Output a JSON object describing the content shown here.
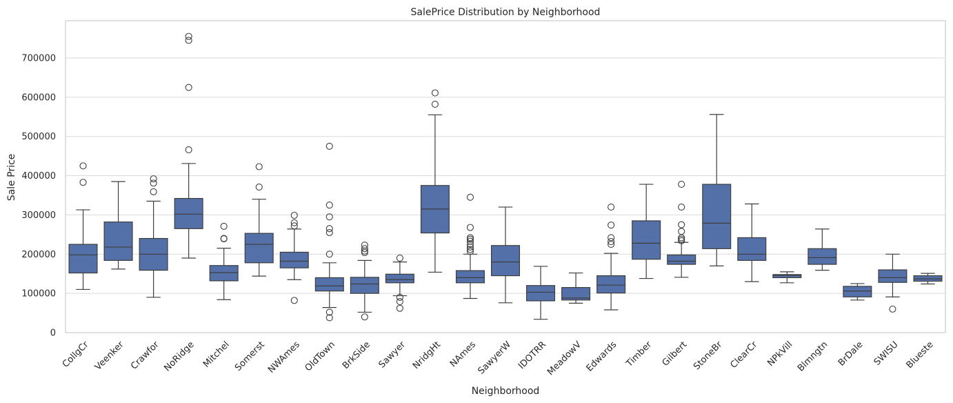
{
  "chart_data": {
    "type": "box",
    "title": "SalePrice Distribution by Neighborhood",
    "xlabel": "Neighborhood",
    "ylabel": "Sale Price",
    "ylim": [
      0,
      795000
    ],
    "yticks": [
      0,
      100000,
      200000,
      300000,
      400000,
      500000,
      600000,
      700000
    ],
    "grid": "horizontal",
    "colors": {
      "box": "#5470a8",
      "line": "#3d3d3d",
      "grid": "#d9d9d9",
      "frame": "#cccccc"
    },
    "boxes": [
      {
        "category": "CollgCr",
        "whisker_low": 110000,
        "q1": 152000,
        "median": 198000,
        "q3": 225000,
        "whisker_high": 313000,
        "outliers": [
          383000,
          425000
        ]
      },
      {
        "category": "Veenker",
        "whisker_low": 162000,
        "q1": 184000,
        "median": 218000,
        "q3": 282000,
        "whisker_high": 385000,
        "outliers": []
      },
      {
        "category": "Crawfor",
        "whisker_low": 90000,
        "q1": 159000,
        "median": 200000,
        "q3": 240000,
        "whisker_high": 335000,
        "outliers": [
          359000,
          381000,
          392000
        ]
      },
      {
        "category": "NoRidge",
        "whisker_low": 190000,
        "q1": 265000,
        "median": 302000,
        "q3": 342000,
        "whisker_high": 431000,
        "outliers": [
          466000,
          625000,
          745000,
          755000
        ]
      },
      {
        "category": "Mitchel",
        "whisker_low": 84000,
        "q1": 132000,
        "median": 153000,
        "q3": 171000,
        "whisker_high": 215000,
        "outliers": [
          239000,
          240000,
          271000
        ]
      },
      {
        "category": "Somerst",
        "whisker_low": 144000,
        "q1": 178000,
        "median": 225000,
        "q3": 253000,
        "whisker_high": 340000,
        "outliers": [
          371000,
          423000
        ]
      },
      {
        "category": "NWAmes",
        "whisker_low": 135000,
        "q1": 165000,
        "median": 182000,
        "q3": 205000,
        "whisker_high": 264000,
        "outliers": [
          82000,
          272000,
          280000,
          299000
        ]
      },
      {
        "category": "OldTown",
        "whisker_low": 64000,
        "q1": 106000,
        "median": 119000,
        "q3": 140000,
        "whisker_high": 178000,
        "outliers": [
          38000,
          52000,
          200000,
          255000,
          265000,
          295000,
          325000,
          475000
        ]
      },
      {
        "category": "BrkSide",
        "whisker_low": 52000,
        "q1": 100000,
        "median": 124000,
        "q3": 141000,
        "whisker_high": 184000,
        "outliers": [
          40000,
          204000,
          208000,
          214000,
          223000
        ]
      },
      {
        "category": "Sawyer",
        "whisker_low": 94000,
        "q1": 127000,
        "median": 135000,
        "q3": 149000,
        "whisker_high": 180000,
        "outliers": [
          62000,
          79000,
          90000,
          190000
        ]
      },
      {
        "category": "NridgHt",
        "whisker_low": 154000,
        "q1": 254000,
        "median": 315000,
        "q3": 375000,
        "whisker_high": 555000,
        "outliers": [
          582000,
          611000
        ]
      },
      {
        "category": "NAmes",
        "whisker_low": 87000,
        "q1": 127000,
        "median": 140000,
        "q3": 158000,
        "whisker_high": 200000,
        "outliers": [
          207000,
          212000,
          218000,
          225000,
          233000,
          238000,
          242000,
          268000,
          345000
        ]
      },
      {
        "category": "SawyerW",
        "whisker_low": 76000,
        "q1": 145000,
        "median": 180000,
        "q3": 222000,
        "whisker_high": 320000,
        "outliers": []
      },
      {
        "category": "IDOTRR",
        "whisker_low": 34000,
        "q1": 81000,
        "median": 103000,
        "q3": 120000,
        "whisker_high": 169000,
        "outliers": []
      },
      {
        "category": "MeadowV",
        "whisker_low": 75000,
        "q1": 83000,
        "median": 88000,
        "q3": 115000,
        "whisker_high": 152000,
        "outliers": []
      },
      {
        "category": "Edwards",
        "whisker_low": 58000,
        "q1": 101000,
        "median": 121000,
        "q3": 145000,
        "whisker_high": 202000,
        "outliers": [
          225000,
          232000,
          242000,
          274000,
          320000
        ]
      },
      {
        "category": "Timber",
        "whisker_low": 138000,
        "q1": 187000,
        "median": 228000,
        "q3": 285000,
        "whisker_high": 378000,
        "outliers": []
      },
      {
        "category": "Gilbert",
        "whisker_low": 141000,
        "q1": 174000,
        "median": 182000,
        "q3": 198000,
        "whisker_high": 230000,
        "outliers": [
          234000,
          238000,
          242000,
          258000,
          275000,
          320000,
          378000
        ]
      },
      {
        "category": "StoneBr",
        "whisker_low": 170000,
        "q1": 214000,
        "median": 279000,
        "q3": 378000,
        "whisker_high": 556000,
        "outliers": []
      },
      {
        "category": "ClearCr",
        "whisker_low": 130000,
        "q1": 184000,
        "median": 200000,
        "q3": 242000,
        "whisker_high": 328000,
        "outliers": []
      },
      {
        "category": "NPkVill",
        "whisker_low": 127000,
        "q1": 140000,
        "median": 146000,
        "q3": 148000,
        "whisker_high": 155000,
        "outliers": []
      },
      {
        "category": "Blmngtn",
        "whisker_low": 159000,
        "q1": 174000,
        "median": 191000,
        "q3": 214000,
        "whisker_high": 264000,
        "outliers": []
      },
      {
        "category": "BrDale",
        "whisker_low": 83000,
        "q1": 91000,
        "median": 106000,
        "q3": 118000,
        "whisker_high": 125000,
        "outliers": []
      },
      {
        "category": "SWISU",
        "whisker_low": 91000,
        "q1": 128000,
        "median": 140000,
        "q3": 160000,
        "whisker_high": 200000,
        "outliers": [
          60000
        ]
      },
      {
        "category": "Blueste",
        "whisker_low": 124000,
        "q1": 131000,
        "median": 137000,
        "q3": 145000,
        "whisker_high": 151000,
        "outliers": []
      }
    ]
  }
}
